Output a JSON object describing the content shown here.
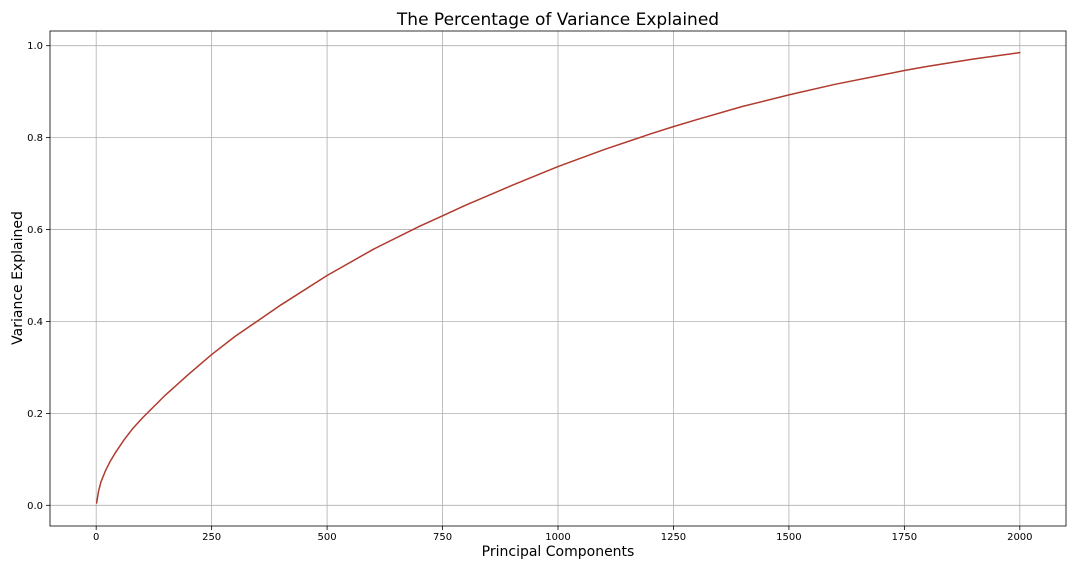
{
  "chart_data": {
    "type": "line",
    "title": "The Percentage of Variance Explained",
    "xlabel": "Principal Components",
    "ylabel": "Variance Explained",
    "xlim": [
      -100,
      2100
    ],
    "ylim": [
      -0.045,
      1.032
    ],
    "xticks": [
      0,
      250,
      500,
      750,
      1000,
      1250,
      1500,
      1750,
      2000
    ],
    "xtick_labels": [
      "0",
      "250",
      "500",
      "750",
      "1000",
      "1250",
      "1500",
      "1750",
      "2000"
    ],
    "yticks": [
      0.0,
      0.2,
      0.4,
      0.6,
      0.8,
      1.0
    ],
    "ytick_labels": [
      "0.0",
      "0.2",
      "0.4",
      "0.6",
      "0.8",
      "1.0"
    ],
    "grid": true,
    "color": "#b03a2e",
    "series": [
      {
        "x": [
          1,
          5,
          10,
          20,
          30,
          40,
          60,
          80,
          100,
          150,
          200,
          250,
          300,
          400,
          500,
          600,
          700,
          750,
          800,
          900,
          1000,
          1100,
          1200,
          1250,
          1300,
          1400,
          1500,
          1600,
          1700,
          1750,
          1800,
          1900,
          2000
        ],
        "values": [
          0.005,
          0.03,
          0.05,
          0.075,
          0.095,
          0.112,
          0.142,
          0.168,
          0.19,
          0.24,
          0.285,
          0.328,
          0.367,
          0.436,
          0.5,
          0.557,
          0.607,
          0.63,
          0.653,
          0.696,
          0.737,
          0.774,
          0.808,
          0.824,
          0.839,
          0.868,
          0.893,
          0.916,
          0.936,
          0.946,
          0.955,
          0.971,
          0.985
        ]
      }
    ]
  }
}
